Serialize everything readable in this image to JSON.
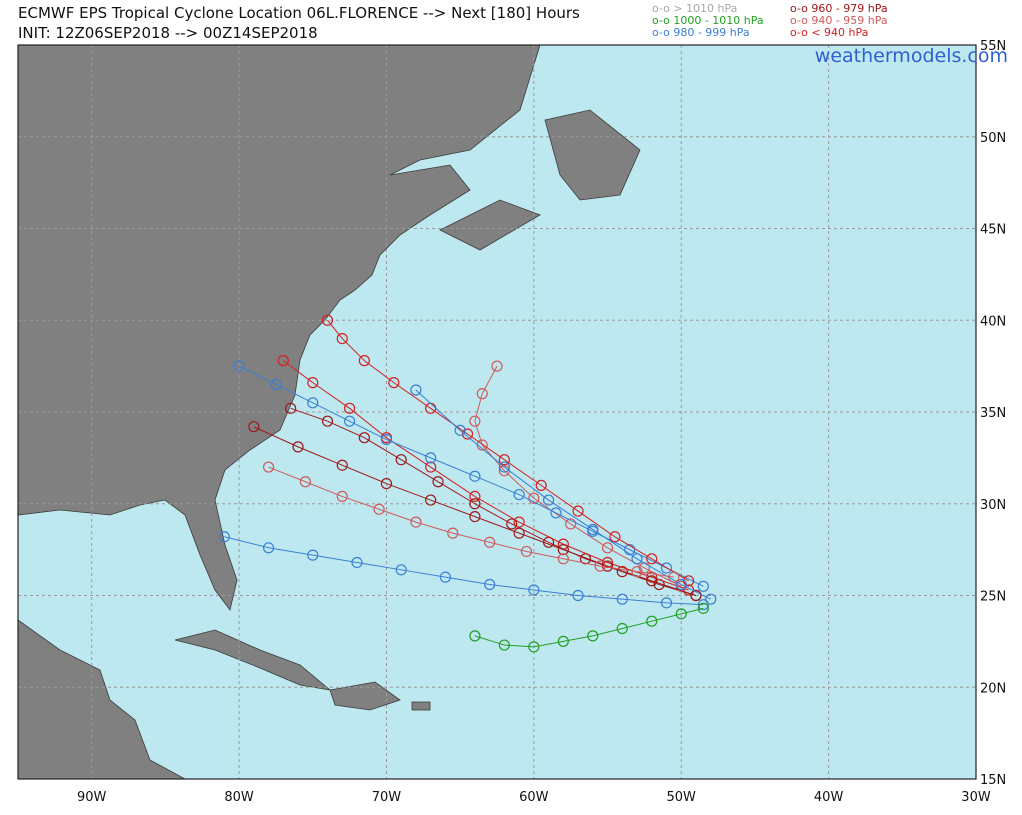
{
  "header": {
    "title": "ECMWF EPS Tropical Cyclone Location 06L.FLORENCE --> Next [180] Hours",
    "init": "INIT: 12Z06SEP2018 --> 00Z14SEP2018"
  },
  "legend": [
    {
      "label": "o-o > 1010 hPa",
      "color": "#a8a8a8"
    },
    {
      "label": "o-o 1000 - 1010 hPa",
      "color": "#22a022"
    },
    {
      "label": "o-o 980 - 999 hPa",
      "color": "#3a7fd5"
    },
    {
      "label": "o-o 960 - 979 hPa",
      "color": "#a01818"
    },
    {
      "label": "o-o 940 - 959 hPa",
      "color": "#d05a5a"
    },
    {
      "label": "o-o < 940 hPa",
      "color": "#d42020"
    }
  ],
  "watermark": "weathermodels.com",
  "map": {
    "lonlim": [
      -95,
      -30
    ],
    "latlim": [
      15,
      55
    ],
    "lonticks": [
      {
        "value": -90,
        "label": "90W"
      },
      {
        "value": -80,
        "label": "80W"
      },
      {
        "value": -70,
        "label": "70W"
      },
      {
        "value": -60,
        "label": "60W"
      },
      {
        "value": -50,
        "label": "50W"
      },
      {
        "value": -40,
        "label": "40W"
      },
      {
        "value": -30,
        "label": "30W"
      }
    ],
    "latticks": [
      {
        "value": 15,
        "label": "15N"
      },
      {
        "value": 20,
        "label": "20N"
      },
      {
        "value": 25,
        "label": "25N"
      },
      {
        "value": 30,
        "label": "30N"
      },
      {
        "value": 35,
        "label": "35N"
      },
      {
        "value": 40,
        "label": "40N"
      },
      {
        "value": 45,
        "label": "45N"
      },
      {
        "value": 50,
        "label": "50N"
      },
      {
        "value": 55,
        "label": "55N"
      }
    ],
    "tracks": [
      {
        "color": "#a01818",
        "lon": [
          -49,
          -51.5,
          -54,
          -56.5,
          -59,
          -61.5,
          -64,
          -66.5,
          -69,
          -71.5,
          -74,
          -76.5
        ],
        "lat": [
          25,
          25.6,
          26.3,
          27,
          27.9,
          28.9,
          30,
          31.2,
          32.4,
          33.6,
          34.5,
          35.2
        ]
      },
      {
        "color": "#d42020",
        "lon": [
          -49.5,
          -52,
          -55,
          -58,
          -61,
          -64,
          -67,
          -70,
          -72.5,
          -75,
          -77
        ],
        "lat": [
          25.3,
          26,
          26.8,
          27.8,
          29,
          30.4,
          32,
          33.6,
          35.2,
          36.6,
          37.8
        ]
      },
      {
        "color": "#d05a5a",
        "lon": [
          -50,
          -52.5,
          -55,
          -57.5,
          -60,
          -62,
          -63.5,
          -64,
          -63.5,
          -62.5
        ],
        "lat": [
          25.5,
          26.5,
          27.6,
          28.9,
          30.3,
          31.8,
          33.2,
          34.5,
          36,
          37.5
        ]
      },
      {
        "color": "#3a7fd5",
        "lon": [
          -48.5,
          -51,
          -54,
          -57,
          -60,
          -63,
          -66,
          -69,
          -72,
          -75,
          -78,
          -81
        ],
        "lat": [
          24.5,
          24.6,
          24.8,
          25,
          25.3,
          25.6,
          26,
          26.4,
          26.8,
          27.2,
          27.6,
          28.2
        ]
      },
      {
        "color": "#22a022",
        "lon": [
          -48.5,
          -50,
          -52,
          -54,
          -56,
          -58,
          -60,
          -62,
          -64
        ],
        "lat": [
          24.3,
          24,
          23.6,
          23.2,
          22.8,
          22.5,
          22.2,
          22.3,
          22.8
        ]
      },
      {
        "color": "#3a7fd5",
        "lon": [
          -48.5,
          -51,
          -53.5,
          -56,
          -58.5,
          -61,
          -64,
          -67,
          -70,
          -72.5,
          -75,
          -77.5,
          -80
        ],
        "lat": [
          25.5,
          26.5,
          27.5,
          28.5,
          29.5,
          30.5,
          31.5,
          32.5,
          33.5,
          34.5,
          35.5,
          36.5,
          37.5
        ]
      },
      {
        "color": "#a01818",
        "lon": [
          -49,
          -52,
          -55,
          -58,
          -61,
          -64,
          -67,
          -70,
          -73,
          -76,
          -79
        ],
        "lat": [
          25,
          25.8,
          26.6,
          27.5,
          28.4,
          29.3,
          30.2,
          31.1,
          32.1,
          33.1,
          34.2
        ]
      },
      {
        "color": "#d42020",
        "lon": [
          -49.5,
          -52,
          -54.5,
          -57,
          -59.5,
          -62,
          -64.5,
          -67,
          -69.5,
          -71.5,
          -73,
          -74
        ],
        "lat": [
          25.8,
          27,
          28.2,
          29.6,
          31,
          32.4,
          33.8,
          35.2,
          36.6,
          37.8,
          39,
          40
        ]
      },
      {
        "color": "#3a7fd5",
        "lon": [
          -48,
          -50,
          -53,
          -56,
          -59,
          -62,
          -65,
          -68
        ],
        "lat": [
          24.8,
          25.6,
          27,
          28.6,
          30.2,
          32,
          34,
          36.2
        ]
      },
      {
        "color": "#d05a5a",
        "lon": [
          -50.5,
          -53,
          -55.5,
          -58,
          -60.5,
          -63,
          -65.5,
          -68,
          -70.5,
          -73,
          -75.5,
          -78
        ],
        "lat": [
          26,
          26.3,
          26.6,
          27,
          27.4,
          27.9,
          28.4,
          29,
          29.7,
          30.4,
          31.2,
          32
        ]
      }
    ]
  }
}
